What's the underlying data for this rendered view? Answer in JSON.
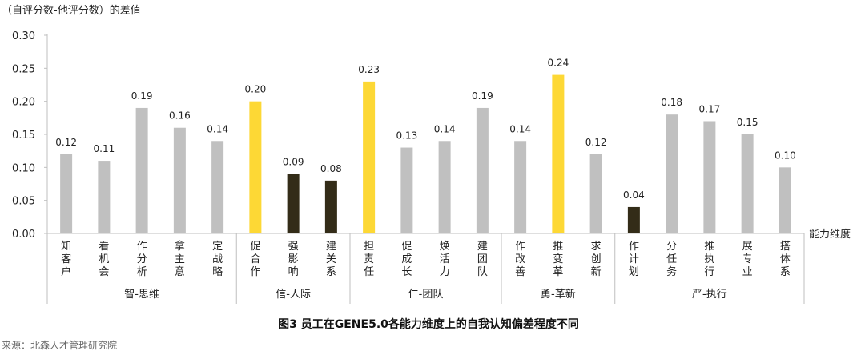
{
  "chart_data": {
    "type": "bar",
    "ylabel": "（自评分数-他评分数）的差值",
    "xlabel": "能力维度",
    "ylim": [
      0,
      0.3
    ],
    "yticks": [
      "0.00",
      "0.05",
      "0.10",
      "0.15",
      "0.20",
      "0.25",
      "0.30"
    ],
    "categories": [
      "知客户",
      "看机会",
      "作分析",
      "拿主意",
      "定战略",
      "促合作",
      "强影响",
      "建关系",
      "担责任",
      "促成长",
      "焕活力",
      "建团队",
      "作改善",
      "推变革",
      "求创新",
      "作计划",
      "分任务",
      "推执行",
      "展专业",
      "搭体系"
    ],
    "values": [
      0.12,
      0.11,
      0.19,
      0.16,
      0.14,
      0.2,
      0.09,
      0.08,
      0.23,
      0.13,
      0.14,
      0.19,
      0.14,
      0.24,
      0.12,
      0.04,
      0.18,
      0.17,
      0.15,
      0.1
    ],
    "value_labels": [
      "0.12",
      "0.11",
      "0.19",
      "0.16",
      "0.14",
      "0.20",
      "0.09",
      "0.08",
      "0.23",
      "0.13",
      "0.14",
      "0.19",
      "0.14",
      "0.24",
      "0.12",
      "0.04",
      "0.18",
      "0.17",
      "0.15",
      "0.10"
    ],
    "bar_kind": [
      "normal",
      "normal",
      "normal",
      "normal",
      "normal",
      "high",
      "low",
      "low",
      "high",
      "normal",
      "normal",
      "normal",
      "normal",
      "high",
      "normal",
      "low",
      "normal",
      "normal",
      "normal",
      "normal"
    ],
    "groups": [
      {
        "label": "智-思维",
        "count": 5
      },
      {
        "label": "信-人际",
        "count": 3
      },
      {
        "label": "仁-团队",
        "count": 4
      },
      {
        "label": "勇-革新",
        "count": 3
      },
      {
        "label": "严-执行",
        "count": 5
      }
    ],
    "colors": {
      "normal": "#c0c0c0",
      "high": "#fdd835",
      "low": "#332c18",
      "axis": "#bfbfbf"
    },
    "grid": false
  },
  "caption": "图3  员工在GENE5.0各能力维度上的自我认知偏差程度不同",
  "source": "来源：北森人才管理研究院"
}
